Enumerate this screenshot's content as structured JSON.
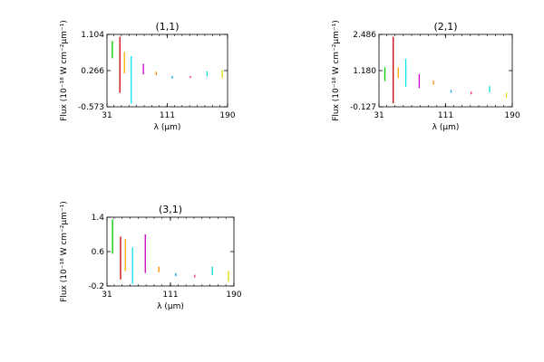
{
  "chart_data": [
    {
      "type": "scatter",
      "title": "(1,1)",
      "xlabel": "λ (μm)",
      "ylabel": "Flux (10⁻¹⁸ W cm⁻²μm⁻¹)",
      "xlim": [
        31,
        190
      ],
      "ylim": [
        -0.573,
        1.104
      ],
      "xticks": [
        "31",
        "111",
        "190"
      ],
      "yticks": [
        "-0.573",
        "0.266",
        "1.104"
      ],
      "grid": false,
      "series": [
        {
          "color": "#00cc00",
          "points": [
            {
              "x": 38,
              "lo": 0.55,
              "hi": 0.95
            }
          ]
        },
        {
          "color": "#cc0000",
          "points": [
            {
              "x": 48,
              "lo": -0.25,
              "hi": 1.05
            }
          ]
        },
        {
          "color": "#ffaa00",
          "points": [
            {
              "x": 54,
              "lo": 0.2,
              "hi": 0.7
            }
          ]
        },
        {
          "color": "#00e5ee",
          "points": [
            {
              "x": 63,
              "lo": -0.5,
              "hi": 0.6
            }
          ]
        },
        {
          "color": "#cc00cc",
          "points": [
            {
              "x": 79,
              "lo": 0.18,
              "hi": 0.42
            }
          ]
        },
        {
          "color": "#ff8800",
          "points": [
            {
              "x": 96,
              "lo": 0.16,
              "hi": 0.24
            }
          ]
        },
        {
          "color": "#00aaee",
          "points": [
            {
              "x": 117,
              "lo": 0.08,
              "hi": 0.14
            }
          ]
        },
        {
          "color": "#ff2288",
          "points": [
            {
              "x": 141,
              "lo": 0.09,
              "hi": 0.14
            }
          ]
        },
        {
          "color": "#00dddd",
          "points": [
            {
              "x": 163,
              "lo": 0.13,
              "hi": 0.25
            }
          ]
        },
        {
          "color": "#dddd00",
          "points": [
            {
              "x": 183,
              "lo": 0.1,
              "hi": 0.28
            }
          ]
        }
      ]
    },
    {
      "type": "scatter",
      "title": "(2,1)",
      "xlabel": "λ (μm)",
      "ylabel": "Flux (10⁻¹⁸ W cm⁻²μm⁻¹)",
      "xlim": [
        31,
        190
      ],
      "ylim": [
        -0.127,
        2.486
      ],
      "xticks": [
        "31",
        "111",
        "190"
      ],
      "yticks": [
        "-0.127",
        "1.180",
        "2.486"
      ],
      "grid": false,
      "series": [
        {
          "color": "#00cc00",
          "points": [
            {
              "x": 38,
              "lo": 0.8,
              "hi": 1.3
            }
          ]
        },
        {
          "color": "#cc0000",
          "points": [
            {
              "x": 48,
              "lo": 0.0,
              "hi": 2.4
            }
          ]
        },
        {
          "color": "#ffaa00",
          "points": [
            {
              "x": 54,
              "lo": 0.9,
              "hi": 1.3
            }
          ]
        },
        {
          "color": "#00e5ee",
          "points": [
            {
              "x": 63,
              "lo": 0.6,
              "hi": 1.6
            }
          ]
        },
        {
          "color": "#cc00cc",
          "points": [
            {
              "x": 79,
              "lo": 0.55,
              "hi": 1.05
            }
          ]
        },
        {
          "color": "#ff8800",
          "points": [
            {
              "x": 96,
              "lo": 0.68,
              "hi": 0.82
            }
          ]
        },
        {
          "color": "#00aaee",
          "points": [
            {
              "x": 117,
              "lo": 0.38,
              "hi": 0.48
            }
          ]
        },
        {
          "color": "#ff2288",
          "points": [
            {
              "x": 141,
              "lo": 0.32,
              "hi": 0.42
            }
          ]
        },
        {
          "color": "#00dddd",
          "points": [
            {
              "x": 163,
              "lo": 0.4,
              "hi": 0.62
            }
          ]
        },
        {
          "color": "#dddd00",
          "points": [
            {
              "x": 183,
              "lo": 0.2,
              "hi": 0.38
            }
          ]
        }
      ]
    },
    {
      "type": "scatter",
      "title": "(3,1)",
      "xlabel": "λ (μm)",
      "ylabel": "Flux (10⁻¹⁸ W cm⁻²μm⁻¹)",
      "xlim": [
        31,
        190
      ],
      "ylim": [
        -0.2,
        1.4
      ],
      "xticks": [
        "31",
        "111",
        "190"
      ],
      "yticks": [
        "-0.2",
        "0.6",
        "1.4"
      ],
      "grid": false,
      "series": [
        {
          "color": "#00cc00",
          "points": [
            {
              "x": 38,
              "lo": 0.55,
              "hi": 1.35
            }
          ]
        },
        {
          "color": "#cc0000",
          "points": [
            {
              "x": 48,
              "lo": -0.05,
              "hi": 0.95
            }
          ]
        },
        {
          "color": "#ffaa00",
          "points": [
            {
              "x": 54,
              "lo": 0.15,
              "hi": 0.9
            }
          ]
        },
        {
          "color": "#00e5ee",
          "points": [
            {
              "x": 63,
              "lo": -0.15,
              "hi": 0.7
            }
          ]
        },
        {
          "color": "#cc00cc",
          "points": [
            {
              "x": 79,
              "lo": 0.1,
              "hi": 1.0
            }
          ]
        },
        {
          "color": "#ff8800",
          "points": [
            {
              "x": 96,
              "lo": 0.12,
              "hi": 0.25
            }
          ]
        },
        {
          "color": "#00aaee",
          "points": [
            {
              "x": 117,
              "lo": 0.03,
              "hi": 0.1
            }
          ]
        },
        {
          "color": "#ff2288",
          "points": [
            {
              "x": 141,
              "lo": 0.0,
              "hi": 0.06
            }
          ]
        },
        {
          "color": "#00dddd",
          "points": [
            {
              "x": 163,
              "lo": 0.05,
              "hi": 0.25
            }
          ]
        },
        {
          "color": "#dddd00",
          "points": [
            {
              "x": 183,
              "lo": -0.1,
              "hi": 0.15
            }
          ]
        }
      ]
    }
  ]
}
